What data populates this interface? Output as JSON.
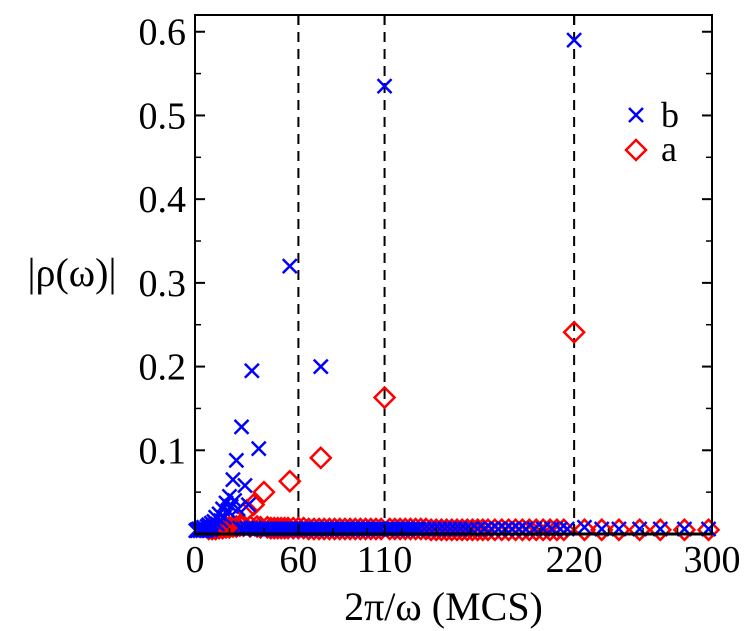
{
  "chart_data": {
    "type": "scatter",
    "title": "",
    "xlabel": "2π/ω (MCS)",
    "ylabel": "|ρ(ω)|",
    "xlim": [
      0,
      300
    ],
    "ylim": [
      0,
      0.62
    ],
    "xticks": [
      0,
      60,
      110,
      220,
      300
    ],
    "xtick_labels": [
      "0",
      "60",
      "110",
      "220",
      "300"
    ],
    "yticks": [
      0.1,
      0.2,
      0.3,
      0.4,
      0.5,
      0.6
    ],
    "ytick_labels": [
      "0.1",
      "0.2",
      "0.3",
      "0.4",
      "0.5",
      "0.6"
    ],
    "vlines": [
      60,
      110,
      220
    ],
    "legend_position": "top-right",
    "series": [
      {
        "name": "b",
        "marker": "x",
        "color": "#0000ff",
        "points": [
          [
            0.5,
            0.004
          ],
          [
            1,
            0.005
          ],
          [
            1.5,
            0.004
          ],
          [
            2,
            0.006
          ],
          [
            2.5,
            0.005
          ],
          [
            3,
            0.004
          ],
          [
            3.5,
            0.007
          ],
          [
            4,
            0.005
          ],
          [
            4.5,
            0.004
          ],
          [
            5,
            0.008
          ],
          [
            5.5,
            0.005
          ],
          [
            6,
            0.006
          ],
          [
            6.5,
            0.004
          ],
          [
            7,
            0.009
          ],
          [
            7.5,
            0.006
          ],
          [
            8,
            0.011
          ],
          [
            8.5,
            0.007
          ],
          [
            9,
            0.005
          ],
          [
            9.5,
            0.013
          ],
          [
            10,
            0.008
          ],
          [
            11,
            0.015
          ],
          [
            12,
            0.02
          ],
          [
            13,
            0.012
          ],
          [
            14,
            0.024
          ],
          [
            15,
            0.016
          ],
          [
            16,
            0.03
          ],
          [
            17,
            0.02
          ],
          [
            18,
            0.037
          ],
          [
            19,
            0.028
          ],
          [
            20,
            0.045
          ],
          [
            21,
            0.033
          ],
          [
            22,
            0.065
          ],
          [
            23,
            0.04
          ],
          [
            24,
            0.088
          ],
          [
            25,
            0.03
          ],
          [
            27,
            0.128
          ],
          [
            29,
            0.058
          ],
          [
            31,
            0.035
          ],
          [
            33,
            0.195
          ],
          [
            37,
            0.102
          ],
          [
            55,
            0.32
          ],
          [
            73,
            0.2
          ],
          [
            110,
            0.535
          ],
          [
            220,
            0.59
          ],
          [
            26,
            0.007
          ],
          [
            28,
            0.006
          ],
          [
            30,
            0.007
          ],
          [
            32,
            0.006
          ],
          [
            34,
            0.007
          ],
          [
            36,
            0.006
          ],
          [
            38,
            0.006
          ],
          [
            40,
            0.006
          ],
          [
            42,
            0.006
          ],
          [
            44,
            0.006
          ],
          [
            46,
            0.006
          ],
          [
            48,
            0.006
          ],
          [
            50,
            0.006
          ],
          [
            52,
            0.006
          ],
          [
            54,
            0.006
          ],
          [
            56,
            0.006
          ],
          [
            58,
            0.006
          ],
          [
            60,
            0.006
          ],
          [
            62,
            0.006
          ],
          [
            64,
            0.006
          ],
          [
            66,
            0.006
          ],
          [
            68,
            0.006
          ],
          [
            70,
            0.006
          ],
          [
            72,
            0.006
          ],
          [
            74,
            0.006
          ],
          [
            76,
            0.006
          ],
          [
            78,
            0.006
          ],
          [
            80,
            0.006
          ],
          [
            82,
            0.006
          ],
          [
            84,
            0.006
          ],
          [
            86,
            0.006
          ],
          [
            88,
            0.006
          ],
          [
            90,
            0.006
          ],
          [
            92,
            0.006
          ],
          [
            94,
            0.006
          ],
          [
            96,
            0.006
          ],
          [
            98,
            0.006
          ],
          [
            100,
            0.006
          ],
          [
            102,
            0.006
          ],
          [
            104,
            0.006
          ],
          [
            106,
            0.006
          ],
          [
            108,
            0.006
          ],
          [
            112,
            0.006
          ],
          [
            114,
            0.006
          ],
          [
            116,
            0.006
          ],
          [
            118,
            0.006
          ],
          [
            120,
            0.006
          ],
          [
            122,
            0.006
          ],
          [
            124,
            0.006
          ],
          [
            126,
            0.006
          ],
          [
            128,
            0.006
          ],
          [
            130,
            0.006
          ],
          [
            133,
            0.006
          ],
          [
            136,
            0.006
          ],
          [
            139,
            0.006
          ],
          [
            142,
            0.006
          ],
          [
            145,
            0.006
          ],
          [
            148,
            0.006
          ],
          [
            151,
            0.006
          ],
          [
            154,
            0.006
          ],
          [
            157,
            0.006
          ],
          [
            160,
            0.006
          ],
          [
            164,
            0.006
          ],
          [
            168,
            0.006
          ],
          [
            172,
            0.006
          ],
          [
            176,
            0.006
          ],
          [
            180,
            0.006
          ],
          [
            184,
            0.006
          ],
          [
            188,
            0.006
          ],
          [
            192,
            0.006
          ],
          [
            197,
            0.006
          ],
          [
            202,
            0.006
          ],
          [
            207,
            0.006
          ],
          [
            212,
            0.006
          ],
          [
            216,
            0.006
          ],
          [
            226,
            0.008
          ],
          [
            236,
            0.006
          ],
          [
            246,
            0.006
          ],
          [
            258,
            0.006
          ],
          [
            270,
            0.006
          ],
          [
            284,
            0.006
          ],
          [
            298,
            0.006
          ]
        ]
      },
      {
        "name": "a",
        "marker": "diamond",
        "color": "#ff0000",
        "points": [
          [
            30,
            0.028
          ],
          [
            34,
            0.035
          ],
          [
            40,
            0.05
          ],
          [
            55,
            0.063
          ],
          [
            73,
            0.091
          ],
          [
            110,
            0.163
          ],
          [
            220,
            0.241
          ],
          [
            8,
            0.006
          ],
          [
            10,
            0.006
          ],
          [
            12,
            0.006
          ],
          [
            14,
            0.007
          ],
          [
            16,
            0.007
          ],
          [
            18,
            0.008
          ],
          [
            20,
            0.008
          ],
          [
            22,
            0.009
          ],
          [
            24,
            0.009
          ],
          [
            26,
            0.01
          ],
          [
            28,
            0.01
          ],
          [
            32,
            0.009
          ],
          [
            36,
            0.009
          ],
          [
            38,
            0.008
          ],
          [
            42,
            0.008
          ],
          [
            44,
            0.007
          ],
          [
            46,
            0.007
          ],
          [
            48,
            0.007
          ],
          [
            50,
            0.007
          ],
          [
            52,
            0.007
          ],
          [
            54,
            0.007
          ],
          [
            57,
            0.007
          ],
          [
            60,
            0.007
          ],
          [
            63,
            0.007
          ],
          [
            66,
            0.006
          ],
          [
            69,
            0.006
          ],
          [
            72,
            0.006
          ],
          [
            75,
            0.006
          ],
          [
            78,
            0.006
          ],
          [
            81,
            0.006
          ],
          [
            84,
            0.006
          ],
          [
            87,
            0.006
          ],
          [
            90,
            0.006
          ],
          [
            93,
            0.006
          ],
          [
            96,
            0.006
          ],
          [
            99,
            0.006
          ],
          [
            102,
            0.006
          ],
          [
            105,
            0.006
          ],
          [
            108,
            0.006
          ],
          [
            113,
            0.006
          ],
          [
            116,
            0.006
          ],
          [
            119,
            0.006
          ],
          [
            122,
            0.006
          ],
          [
            125,
            0.006
          ],
          [
            128,
            0.006
          ],
          [
            131,
            0.006
          ],
          [
            134,
            0.006
          ],
          [
            137,
            0.005
          ],
          [
            140,
            0.005
          ],
          [
            143,
            0.005
          ],
          [
            146,
            0.005
          ],
          [
            149,
            0.005
          ],
          [
            152,
            0.005
          ],
          [
            155,
            0.005
          ],
          [
            158,
            0.005
          ],
          [
            161,
            0.005
          ],
          [
            164,
            0.005
          ],
          [
            167,
            0.005
          ],
          [
            170,
            0.005
          ],
          [
            174,
            0.005
          ],
          [
            178,
            0.005
          ],
          [
            182,
            0.005
          ],
          [
            186,
            0.005
          ],
          [
            190,
            0.005
          ],
          [
            194,
            0.005
          ],
          [
            198,
            0.005
          ],
          [
            202,
            0.005
          ],
          [
            206,
            0.005
          ],
          [
            210,
            0.005
          ],
          [
            214,
            0.005
          ],
          [
            226,
            0.005
          ],
          [
            236,
            0.005
          ],
          [
            246,
            0.005
          ],
          [
            258,
            0.005
          ],
          [
            270,
            0.005
          ],
          [
            284,
            0.005
          ],
          [
            298,
            0.005
          ]
        ]
      }
    ]
  }
}
